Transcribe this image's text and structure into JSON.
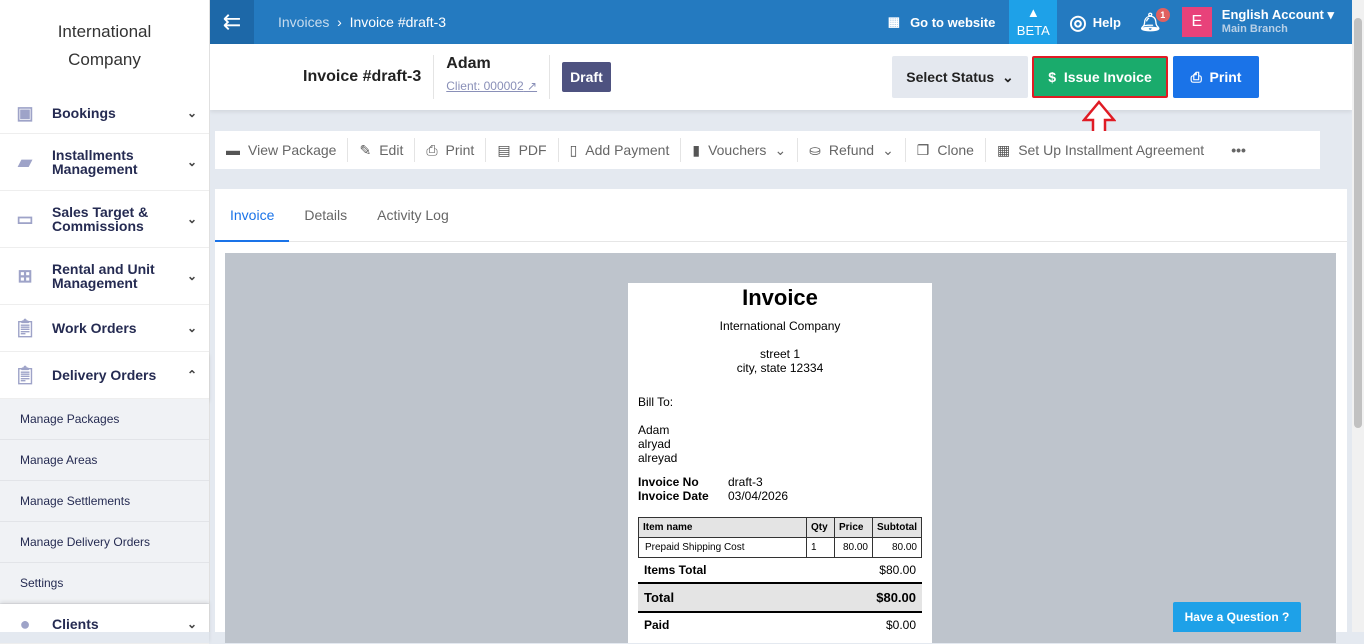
{
  "sidebar": {
    "company": "International Company",
    "items": [
      {
        "label": "Bookings",
        "icon": "booking-icon",
        "expanded": false
      },
      {
        "label": "Installments Management",
        "icon": "installments-icon",
        "expanded": false
      },
      {
        "label": "Sales Target & Commissions",
        "icon": "money-icon",
        "expanded": false
      },
      {
        "label": "Rental and Unit Management",
        "icon": "rental-icon",
        "expanded": false
      },
      {
        "label": "Work Orders",
        "icon": "clipboard-icon",
        "expanded": false
      },
      {
        "label": "Delivery Orders",
        "icon": "clipboard-icon",
        "expanded": true
      }
    ],
    "subitems": [
      "Manage Packages",
      "Manage Areas",
      "Manage Settlements",
      "Manage Delivery Orders",
      "Settings"
    ],
    "clients": "Clients"
  },
  "topbar": {
    "breadcrumb": [
      "Invoices",
      "Invoice #draft-3"
    ],
    "go_to_website": "Go to website",
    "beta": "BETA",
    "help": "Help",
    "notifications": "1",
    "avatar": "E",
    "account": "English Account",
    "branch": "Main Branch"
  },
  "header": {
    "title": "Invoice #draft-3",
    "client_name": "Adam",
    "client_link": "Client: 000002",
    "status": "Draft",
    "select_status": "Select Status",
    "issue_invoice": "Issue Invoice",
    "print": "Print"
  },
  "toolbar": [
    "View Package",
    "Edit",
    "Print",
    "PDF",
    "Add Payment",
    "Vouchers",
    "Refund",
    "Clone",
    "Set Up Installment Agreement"
  ],
  "tabs": [
    "Invoice",
    "Details",
    "Activity Log"
  ],
  "invoice": {
    "heading": "Invoice",
    "company": "International Company",
    "street": "street 1",
    "city": "city, state 12334",
    "bill_to": "Bill To:",
    "client": [
      "Adam",
      "alryad",
      "alreyad"
    ],
    "no_label": "Invoice No",
    "no": "draft-3",
    "date_label": "Invoice Date",
    "date": "03/04/2026",
    "columns": [
      "Item name",
      "Qty",
      "Price",
      "Subtotal"
    ],
    "rows": [
      [
        "Prepaid Shipping Cost",
        "1",
        "80.00",
        "80.00"
      ]
    ],
    "items_total_label": "Items Total",
    "items_total": "$80.00",
    "total_label": "Total",
    "total": "$80.00",
    "paid_label": "Paid",
    "paid": "$0.00"
  },
  "help_widget": "Have a Question",
  "colors": {
    "topbar": "#247ac0",
    "issue": "#1aab6c",
    "print": "#1a73e8",
    "draft": "#4e5280",
    "highlight": "#e01b24"
  }
}
